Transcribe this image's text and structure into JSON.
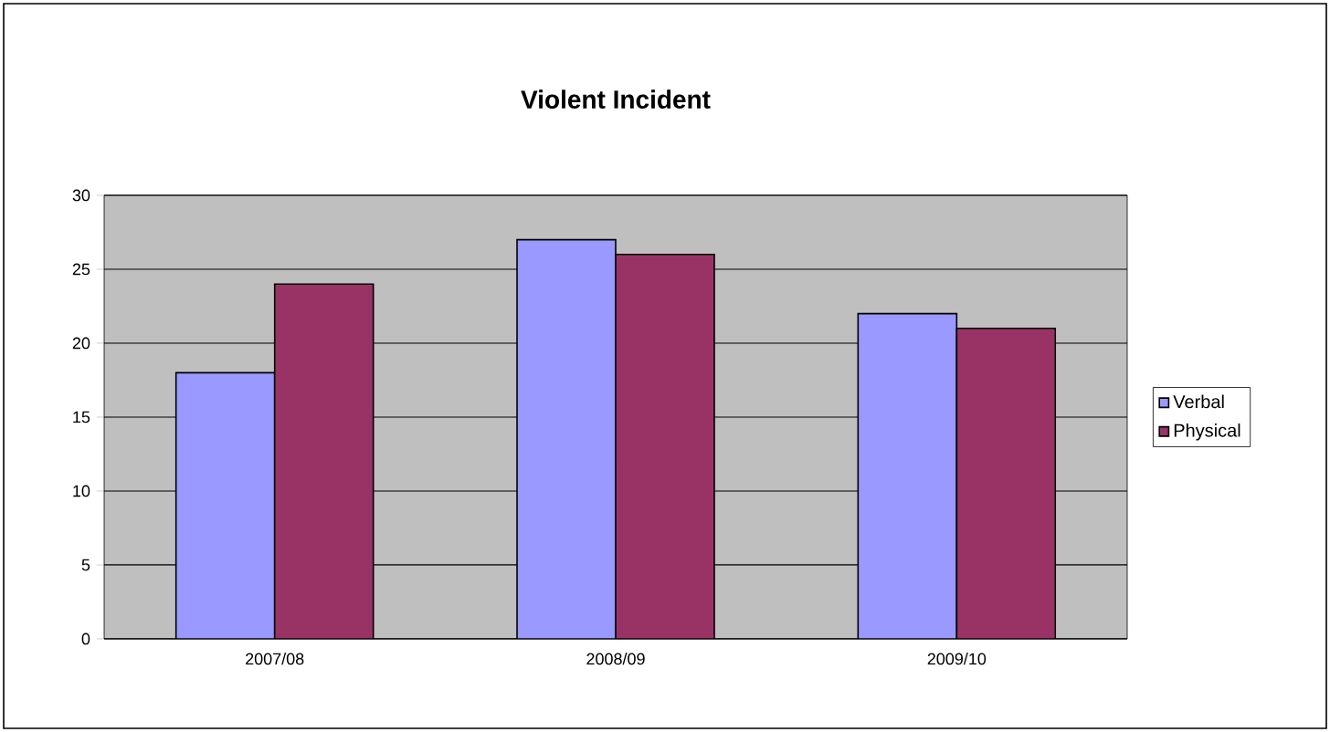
{
  "chart_data": {
    "type": "bar",
    "title": "Violent Incident",
    "categories": [
      "2007/08",
      "2008/09",
      "2009/10"
    ],
    "series": [
      {
        "name": "Verbal",
        "color": "#9999ff",
        "values": [
          18,
          27,
          22
        ]
      },
      {
        "name": "Physical",
        "color": "#993366",
        "values": [
          24,
          26,
          21
        ]
      }
    ],
    "ylim": [
      0,
      30
    ],
    "yticks": [
      0,
      5,
      10,
      15,
      20,
      25,
      30
    ],
    "grid": "y",
    "legend": "right"
  }
}
